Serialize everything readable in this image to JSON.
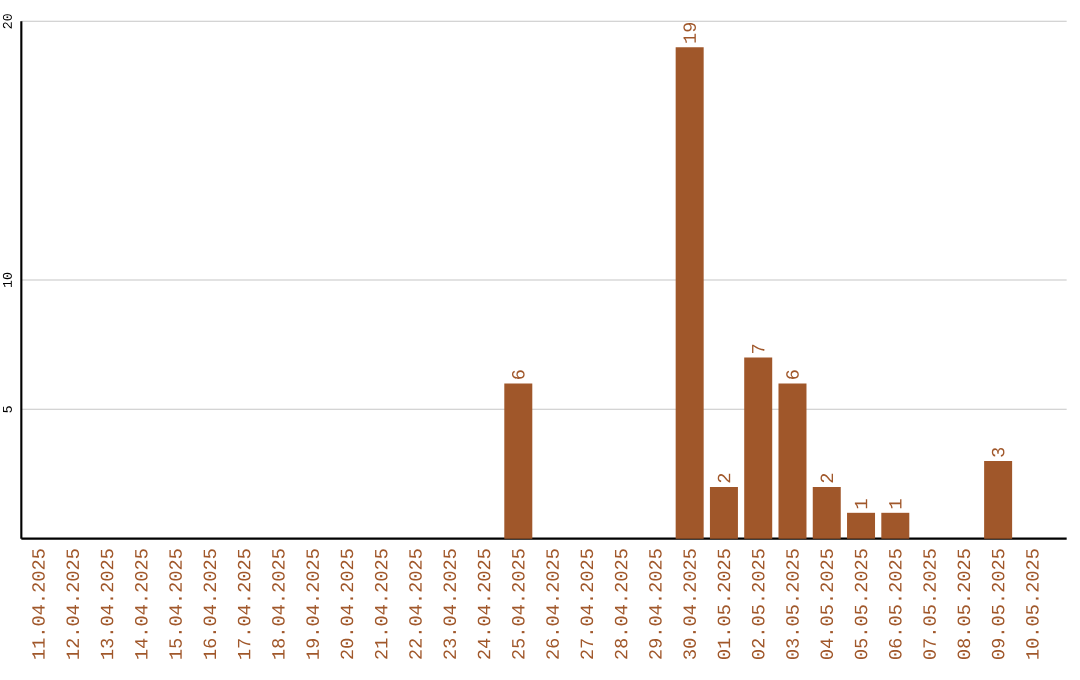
{
  "chart_data": {
    "type": "bar",
    "categories": [
      "11.04.2025",
      "12.04.2025",
      "13.04.2025",
      "14.04.2025",
      "15.04.2025",
      "16.04.2025",
      "17.04.2025",
      "18.04.2025",
      "19.04.2025",
      "20.04.2025",
      "21.04.2025",
      "22.04.2025",
      "23.04.2025",
      "24.04.2025",
      "25.04.2025",
      "26.04.2025",
      "27.04.2025",
      "28.04.2025",
      "29.04.2025",
      "30.04.2025",
      "01.05.2025",
      "02.05.2025",
      "03.05.2025",
      "04.05.2025",
      "05.05.2025",
      "06.05.2025",
      "07.05.2025",
      "08.05.2025",
      "09.05.2025",
      "10.05.2025"
    ],
    "values": [
      0,
      0,
      0,
      0,
      0,
      0,
      0,
      0,
      0,
      0,
      0,
      0,
      0,
      0,
      6,
      0,
      0,
      0,
      0,
      19,
      2,
      7,
      6,
      2,
      1,
      1,
      0,
      0,
      3,
      0
    ],
    "value_labels": [
      null,
      null,
      null,
      null,
      null,
      null,
      null,
      null,
      null,
      null,
      null,
      null,
      null,
      null,
      "6",
      null,
      null,
      null,
      null,
      "19",
      "2",
      "7",
      "6",
      "2",
      "1",
      "1",
      null,
      null,
      "3",
      null
    ],
    "color": "#a0572a",
    "ylim": [
      0,
      20
    ],
    "yticks": [
      5,
      10,
      20
    ],
    "grid": "y"
  }
}
